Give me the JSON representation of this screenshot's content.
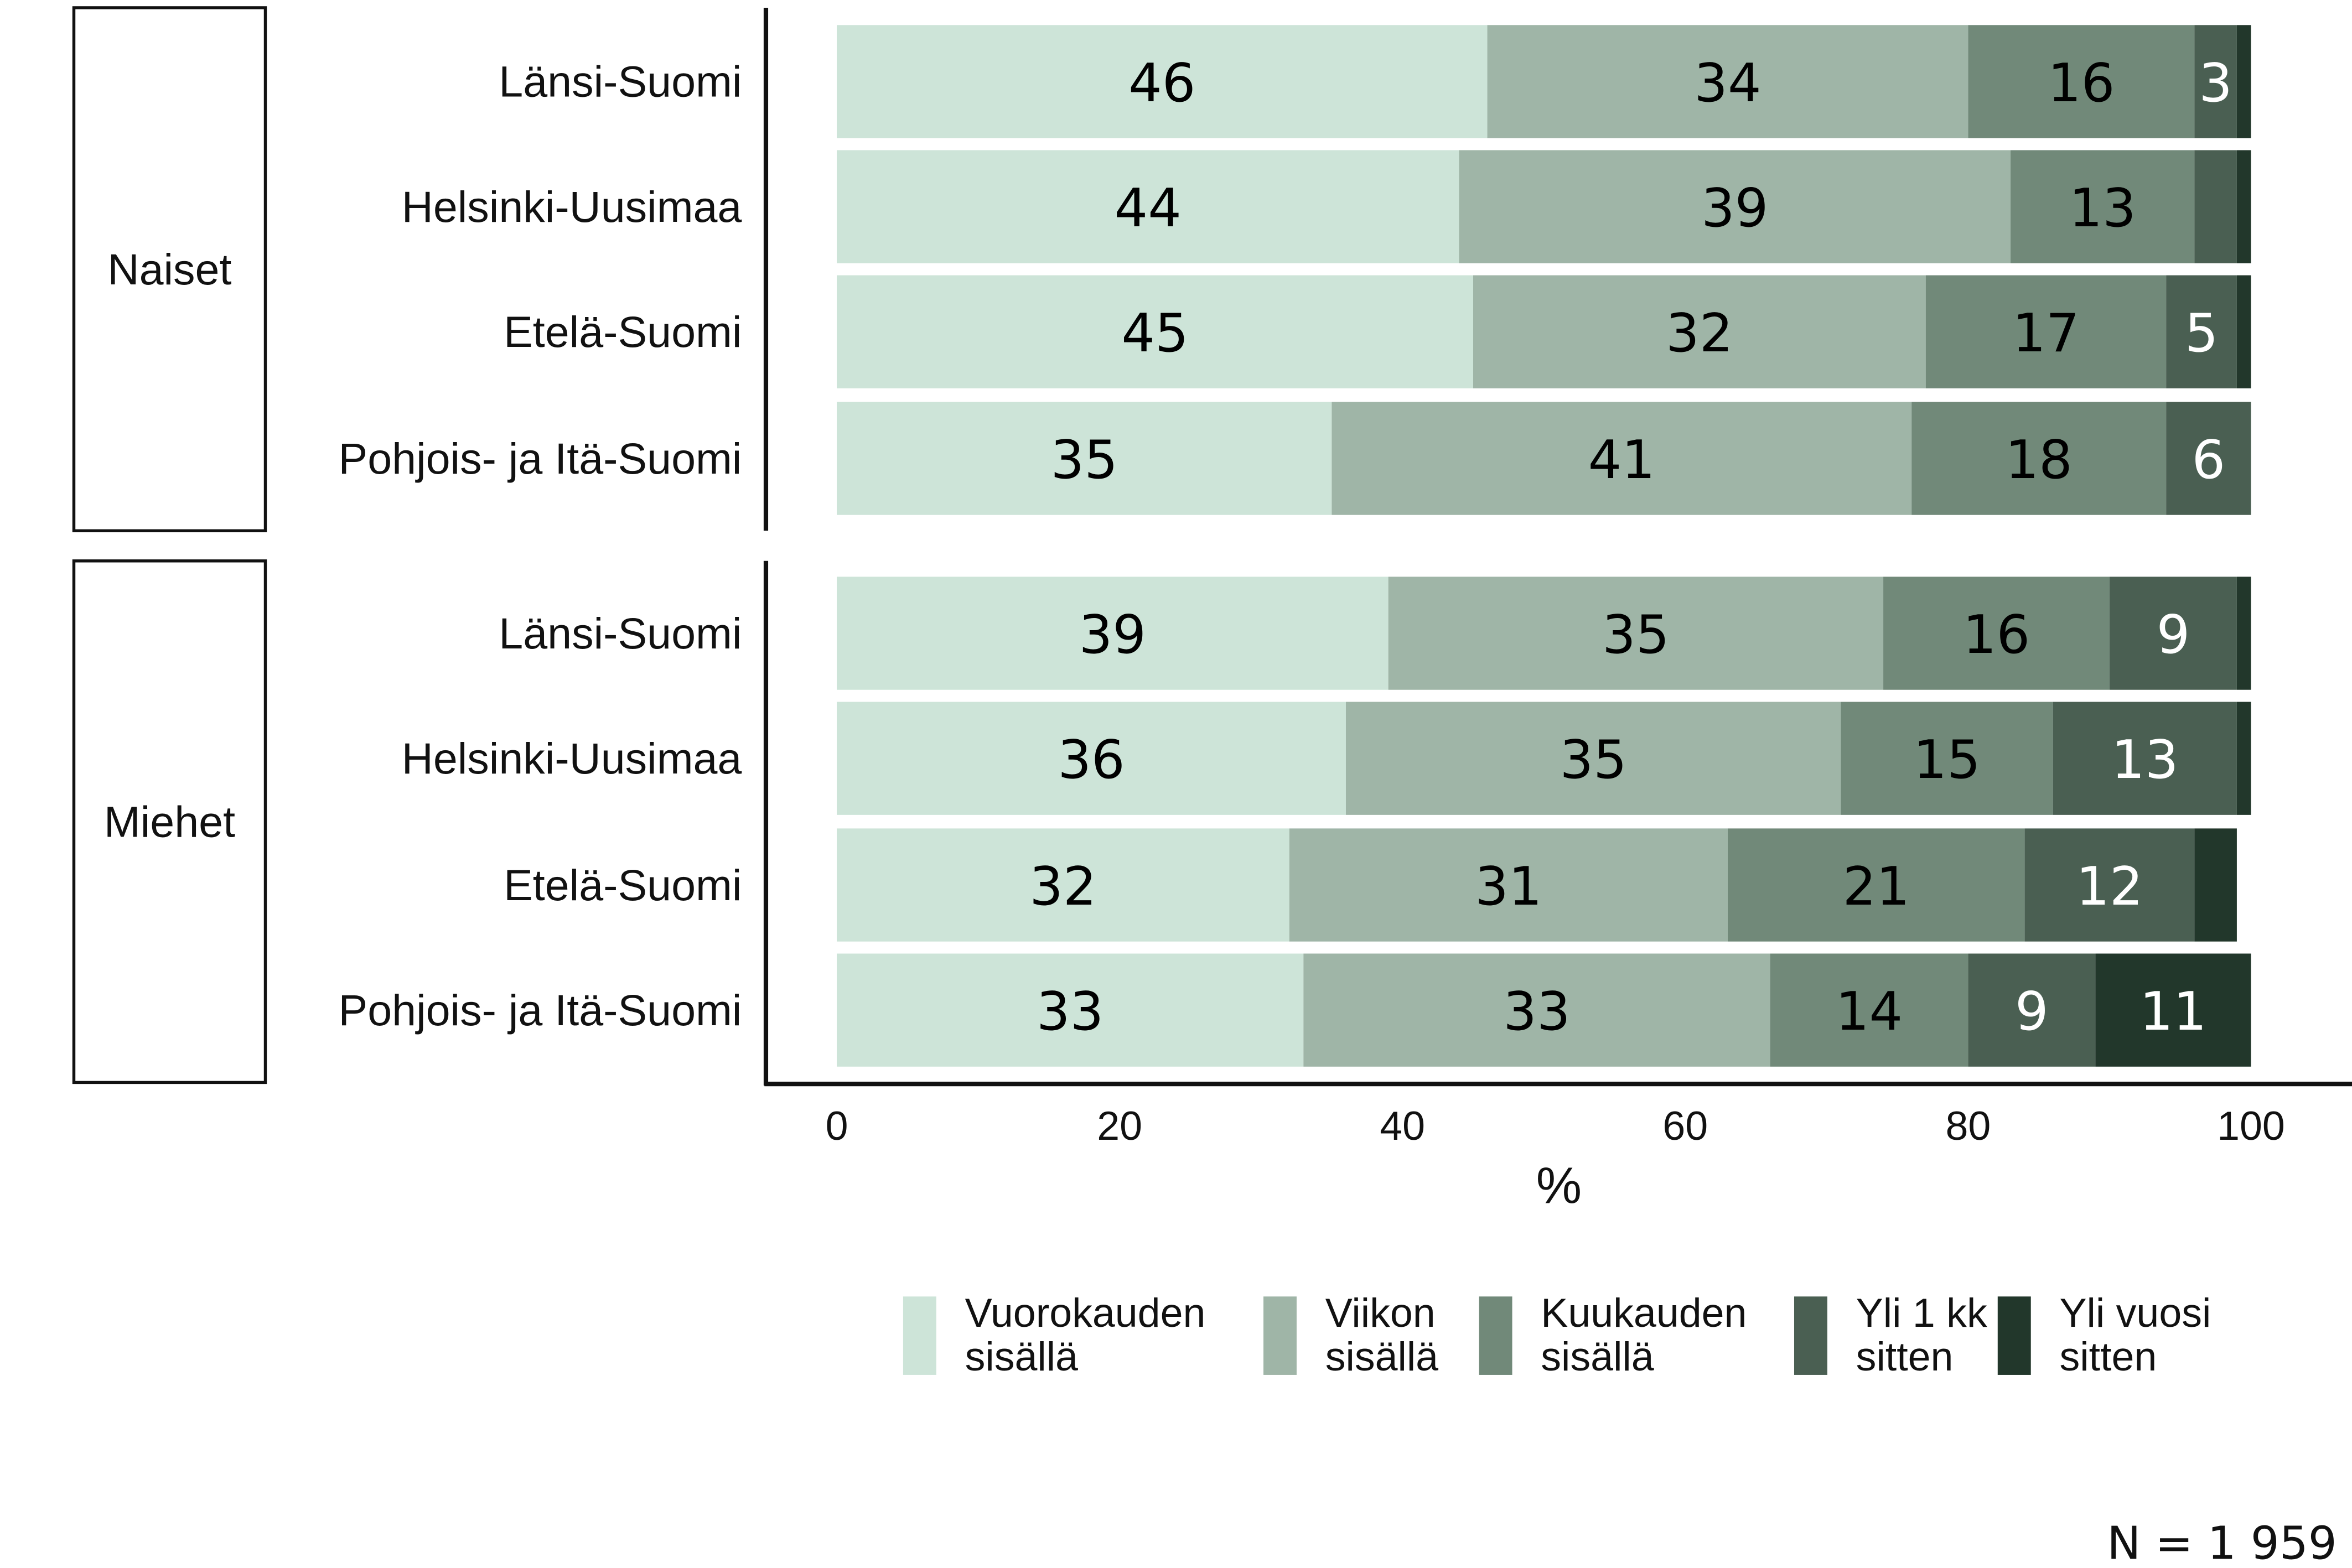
{
  "chart_data": {
    "type": "bar",
    "orientation": "horizontal",
    "stacked": true,
    "xlabel": "%",
    "xlim": [
      0,
      100
    ],
    "xticks": [
      "0",
      "20",
      "40",
      "60",
      "80",
      "100"
    ],
    "groups": [
      {
        "name": "Naiset",
        "categories": [
          "Länsi-Suomi",
          "Helsinki-Uusimaa",
          "Etelä-Suomi",
          "Pohjois- ja Itä-Suomi"
        ]
      },
      {
        "name": "Miehet",
        "categories": [
          "Länsi-Suomi",
          "Helsinki-Uusimaa",
          "Etelä-Suomi",
          "Pohjois- ja Itä-Suomi"
        ]
      }
    ],
    "series": [
      {
        "name": "Vuorokauden sisällä",
        "color": "#cde4d8",
        "values": [
          46,
          44,
          45,
          35,
          39,
          36,
          32,
          33
        ],
        "labels": [
          "46",
          "44",
          "45",
          "35",
          "39",
          "36",
          "32",
          "33"
        ]
      },
      {
        "name": "Viikon sisällä",
        "color": "#9fb5a7",
        "values": [
          34,
          39,
          32,
          41,
          35,
          35,
          31,
          33
        ],
        "labels": [
          "34",
          "39",
          "32",
          "41",
          "35",
          "35",
          "31",
          "33"
        ]
      },
      {
        "name": "Kuukauden sisällä",
        "color": "#718979",
        "values": [
          16,
          13,
          17,
          18,
          16,
          15,
          21,
          14
        ],
        "labels": [
          "16",
          "13",
          "17",
          "18",
          "16",
          "15",
          "21",
          "14"
        ]
      },
      {
        "name": "Yli 1 kk sitten",
        "color": "#4a5f52",
        "values": [
          3,
          3,
          5,
          6,
          9,
          13,
          12,
          9
        ],
        "labels": [
          "3",
          "",
          "5",
          "6",
          "9",
          "13",
          "12",
          "9"
        ]
      },
      {
        "name": "Yli vuosi sitten",
        "color": "#22372b",
        "values": [
          1,
          1,
          1,
          0.5,
          2,
          1,
          3,
          11
        ],
        "labels": [
          "",
          "",
          "",
          "",
          "",
          "",
          "",
          "11"
        ]
      }
    ],
    "legend": [
      "Vuorokauden sisällä",
      "Viikon sisällä",
      "Kuukauden sisällä",
      "Yli 1 kk sitten",
      "Yli vuosi sitten"
    ],
    "legend_position": "bottom",
    "note": "N = 1 959"
  }
}
